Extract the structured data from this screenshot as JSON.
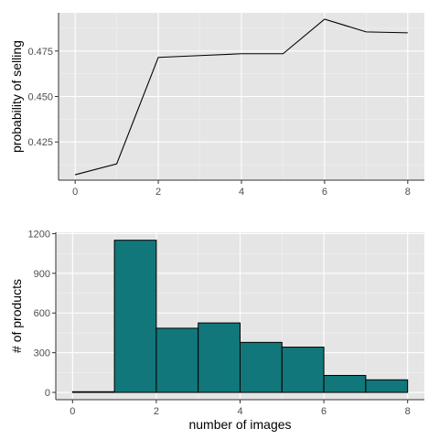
{
  "chart_data": [
    {
      "type": "line",
      "ylabel": "probability of selling",
      "x": [
        0,
        1,
        2,
        3,
        4,
        5,
        6,
        7,
        8
      ],
      "y": [
        0.407,
        0.413,
        0.4715,
        0.4725,
        0.4735,
        0.4735,
        0.4925,
        0.4855,
        0.485
      ],
      "xlim": [
        -0.4,
        8.4
      ],
      "ylim": [
        0.404,
        0.496
      ],
      "xticks": [
        0,
        2,
        4,
        6,
        8
      ],
      "yticks": [
        0.425,
        0.45,
        0.475
      ],
      "ytick_labels": [
        "0.425",
        "0.450",
        "0.475"
      ],
      "grid": true
    },
    {
      "type": "bar",
      "xlabel": "number of images",
      "ylabel": "# of products",
      "bins": [
        [
          0,
          1
        ],
        [
          1,
          2
        ],
        [
          2,
          3
        ],
        [
          3,
          4
        ],
        [
          4,
          5
        ],
        [
          5,
          6
        ],
        [
          6,
          7
        ],
        [
          7,
          8
        ]
      ],
      "values": [
        5,
        1150,
        485,
        525,
        378,
        342,
        128,
        95
      ],
      "xlim": [
        -0.4,
        8.4
      ],
      "ylim": [
        -55,
        1210
      ],
      "xticks": [
        0,
        2,
        4,
        6,
        8
      ],
      "yticks": [
        0,
        300,
        600,
        900,
        1200
      ],
      "ytick_labels": [
        "0",
        "300",
        "600",
        "900",
        "1200"
      ],
      "colors": {
        "fill": "#11777a",
        "outline": "#000000"
      },
      "grid": true
    }
  ]
}
